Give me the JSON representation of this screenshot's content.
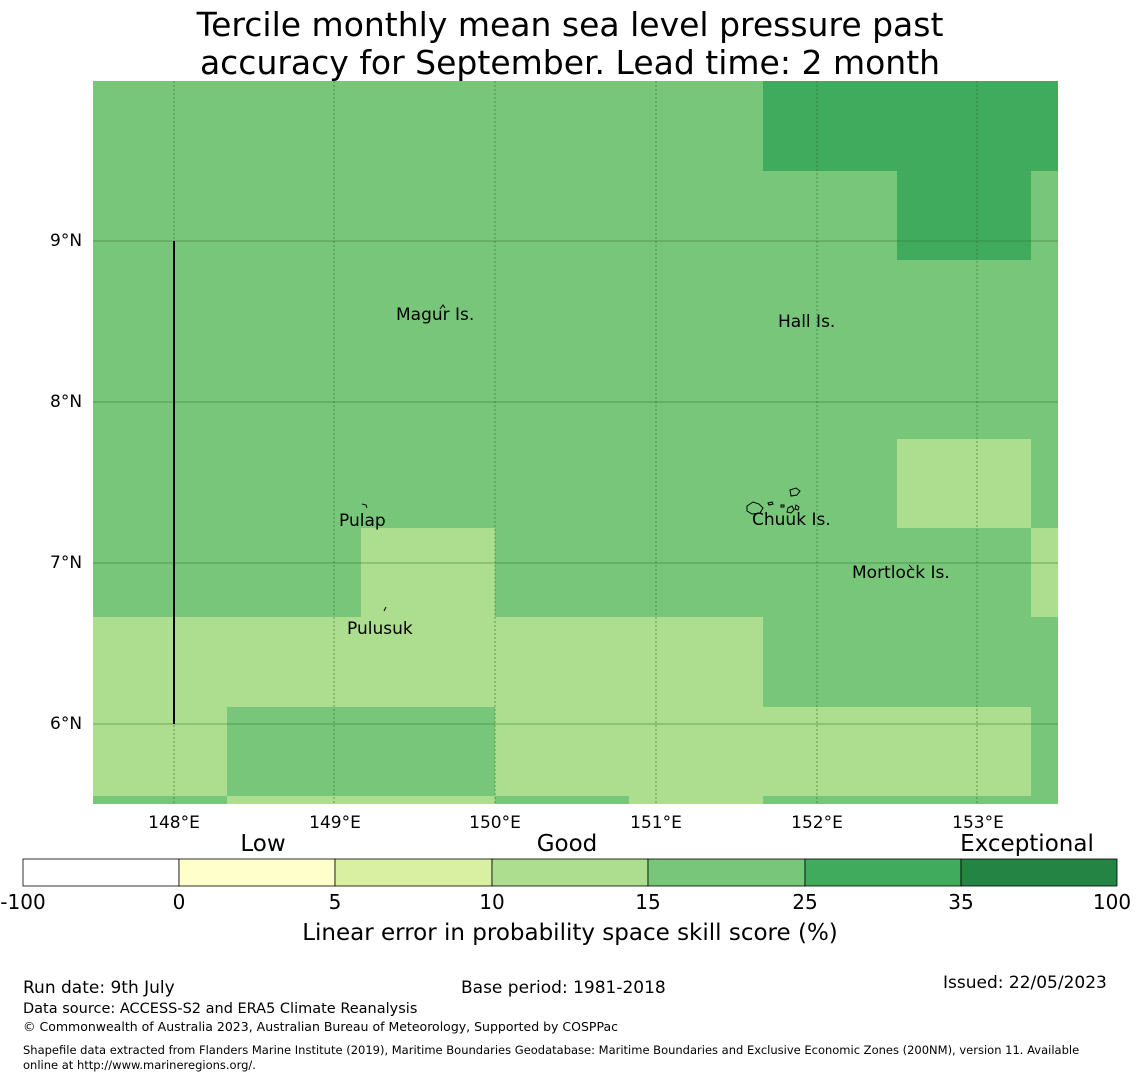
{
  "title_line1": "Tercile monthly mean sea level pressure past",
  "title_line2": "accuracy for September. Lead time: 2 month",
  "map": {
    "lon_range": [
      147.5,
      153.5
    ],
    "lat_range": [
      5.5,
      10.0
    ],
    "x_ticks": [
      "148°E",
      "149°E",
      "150°E",
      "151°E",
      "152°E",
      "153°E"
    ],
    "y_ticks": [
      "9°N",
      "8°N",
      "7°N",
      "6°N"
    ],
    "places": [
      {
        "name": "Magur Is."
      },
      {
        "name": "Hall Is."
      },
      {
        "name": "Pulap"
      },
      {
        "name": "Chuuk Is."
      },
      {
        "name": "Mortlock Is."
      },
      {
        "name": "Pulusuk"
      }
    ]
  },
  "colorbar": {
    "categories": [
      "Low",
      "Good",
      "Exceptional"
    ],
    "ticks": [
      "-100",
      "0",
      "5",
      "10",
      "15",
      "25",
      "35",
      "100"
    ],
    "colors": [
      "#ffffff",
      "#ffffcc",
      "#d9f0a3",
      "#addd8e",
      "#78c679",
      "#41ab5d",
      "#238443"
    ],
    "title": "Linear error in probability space skill score (%)"
  },
  "footer": {
    "run_date": "Run date: 9th July",
    "base_period": "Base period: 1981-2018",
    "issued": "Issued: 22/05/2023",
    "data_source": "Data source: ACCESS-S2 and ERA5 Climate Reanalysis",
    "copyright": "© Commonwealth of Australia 2023, Australian Bureau of Meteorology, Supported by COSPPac",
    "shapefile_line1": "Shapefile data extracted from Flanders Marine Institute (2019), Maritime Boundaries Geodatabase: Maritime Boundaries and Exclusive Economic Zones (200NM), version 11. Available",
    "shapefile_line2": "online at http://www.marineregions.org/."
  }
}
